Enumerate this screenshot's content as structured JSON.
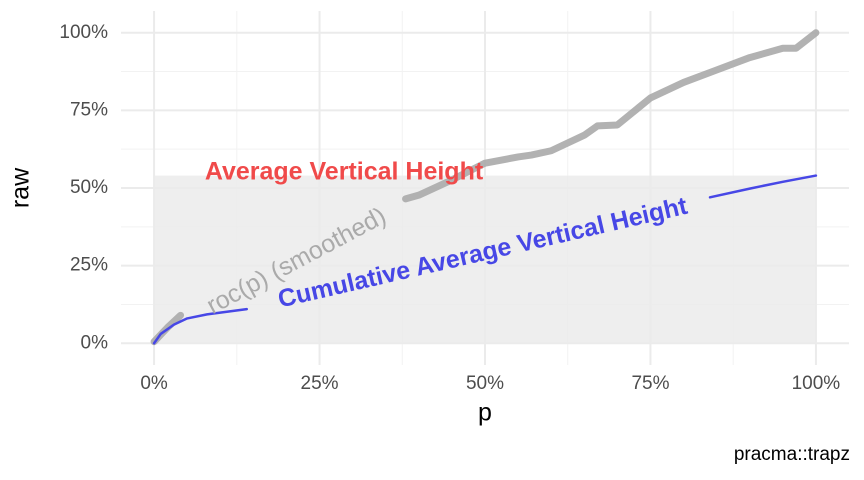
{
  "chart_data": {
    "type": "line",
    "x_label": "p",
    "y_label": "raw",
    "caption": "pracma::trapz",
    "xlim": [
      -5,
      105
    ],
    "ylim": [
      -7,
      107
    ],
    "xticks": [
      {
        "value": 0,
        "label": "0%"
      },
      {
        "value": 25,
        "label": "25%"
      },
      {
        "value": 50,
        "label": "50%"
      },
      {
        "value": 75,
        "label": "75%"
      },
      {
        "value": 100,
        "label": "100%"
      }
    ],
    "yticks": [
      {
        "value": 0,
        "label": "0%"
      },
      {
        "value": 25,
        "label": "25%"
      },
      {
        "value": 50,
        "label": "50%"
      },
      {
        "value": 75,
        "label": "75%"
      },
      {
        "value": 100,
        "label": "100%"
      }
    ],
    "x_minor_ticks": [
      12.5,
      37.5,
      62.5,
      87.5
    ],
    "y_minor_ticks": [
      12.5,
      37.5,
      62.5,
      87.5
    ],
    "grid": true,
    "shaded_rect": {
      "x": [
        0,
        100
      ],
      "ymax": 54,
      "color": "#ebebeb"
    },
    "series": [
      {
        "color": "#aaaaaa",
        "x": [
          0,
          2,
          4,
          5,
          38,
          40,
          45,
          50,
          55,
          57,
          60,
          65,
          67,
          70,
          75,
          80,
          85,
          90,
          95,
          97,
          100
        ],
        "values": [
          0.5,
          5,
          9,
          null,
          46.5,
          47.7,
          52.6,
          58,
          60,
          60.6,
          62,
          67,
          70,
          70.3,
          79,
          84,
          88,
          92,
          95,
          95,
          100
        ]
      },
      {
        "color": "#4747e6",
        "x": [
          0,
          1,
          3,
          5,
          8,
          14,
          15,
          84,
          90,
          95,
          100
        ],
        "values": [
          0,
          3,
          6,
          8,
          9.3,
          11,
          null,
          47,
          49.8,
          52,
          54
        ]
      }
    ],
    "annotations": [
      {
        "text": "Average Vertical Height",
        "color": "#f04a4a"
      },
      {
        "text": "roc(p) (smoothed)",
        "color": "#aaaaaa"
      },
      {
        "text": "Cumulative Average Vertical Height",
        "color": "#4747e6"
      }
    ]
  }
}
